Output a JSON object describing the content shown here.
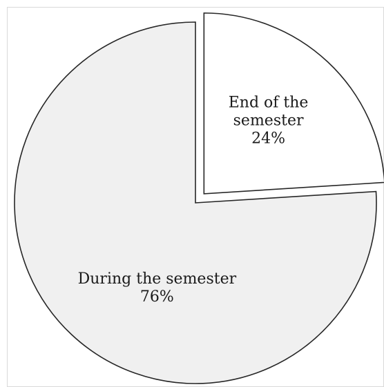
{
  "chart_data": {
    "type": "pie",
    "title": "",
    "slices": [
      {
        "label_lines": [
          "End of the",
          "semester"
        ],
        "value": 24,
        "value_label": "24%",
        "color": "#ffffff",
        "exploded": true
      },
      {
        "label_lines": [
          "During the semester"
        ],
        "value": 76,
        "value_label": "76%",
        "color": "#f0f0f0",
        "exploded": false
      }
    ],
    "start_angle": "12 o'clock",
    "direction": "clockwise",
    "legend": "none"
  }
}
